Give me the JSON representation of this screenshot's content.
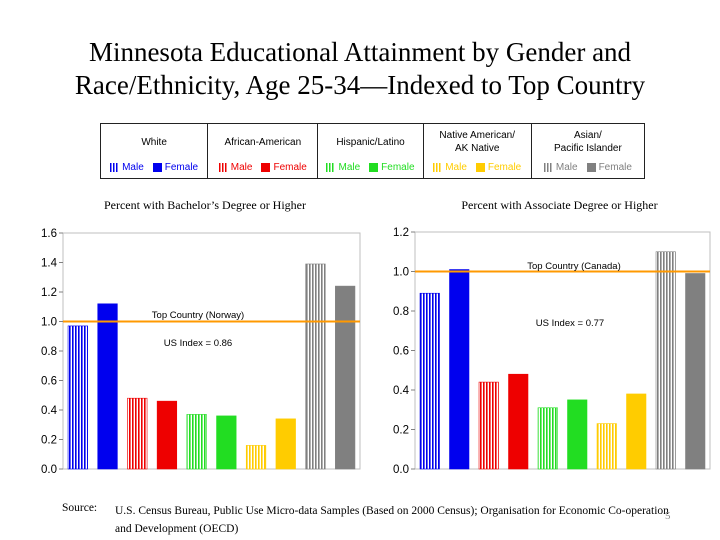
{
  "title": "Minnesota Educational Attainment by Gender and Race/Ethnicity, Age 25-34—Indexed to Top Country",
  "legend": {
    "groups": [
      {
        "name": "White",
        "color": "#0000ee",
        "male_label": "Male",
        "female_label": "Female"
      },
      {
        "name": "African-American",
        "color": "#ee0000",
        "male_label": "Male",
        "female_label": "Female"
      },
      {
        "name": "Hispanic/Latino",
        "color": "#22dd22",
        "male_label": "Male",
        "female_label": "Female"
      },
      {
        "name": "Native American/\nAK Native",
        "color": "#ffcc00",
        "male_label": "Male",
        "female_label": "Female"
      },
      {
        "name": "Asian/\nPacific Islander",
        "color": "#808080",
        "male_label": "Male",
        "female_label": "Female"
      }
    ]
  },
  "chart_data": [
    {
      "type": "bar",
      "title": "Percent with Bachelor’s Degree or Higher",
      "categories": [
        "White Male",
        "White Female",
        "African-American Male",
        "African-American Female",
        "Hispanic/Latino Male",
        "Hispanic/Latino Female",
        "Native American/AK Native Male",
        "Native American/AK Native Female",
        "Asian/Pacific Islander Male",
        "Asian/Pacific Islander Female"
      ],
      "values": [
        0.97,
        1.12,
        0.48,
        0.46,
        0.37,
        0.36,
        0.16,
        0.34,
        1.39,
        1.24
      ],
      "patterns": [
        "striped",
        "solid",
        "striped",
        "solid",
        "striped",
        "solid",
        "striped",
        "solid",
        "striped",
        "solid"
      ],
      "colors": [
        "#0000ee",
        "#0000ee",
        "#ee0000",
        "#ee0000",
        "#22dd22",
        "#22dd22",
        "#ffcc00",
        "#ffcc00",
        "#808080",
        "#808080"
      ],
      "ylim": [
        0,
        1.6
      ],
      "yticks": [
        "0.0",
        "0.2",
        "0.4",
        "0.6",
        "0.8",
        "1.0",
        "1.2",
        "1.4",
        "1.6"
      ],
      "reference_value": 1.0,
      "reference_color": "#ff9900",
      "reference_label": "Top Country (Norway)",
      "index_label": "US Index = 0.86",
      "grid": false
    },
    {
      "type": "bar",
      "title": "Percent with Associate Degree or Higher",
      "categories": [
        "White Male",
        "White Female",
        "African-American Male",
        "African-American Female",
        "Hispanic/Latino Male",
        "Hispanic/Latino Female",
        "Native American/AK Native Male",
        "Native American/AK Native Female",
        "Asian/Pacific Islander Male",
        "Asian/Pacific Islander Female"
      ],
      "values": [
        0.89,
        1.01,
        0.44,
        0.48,
        0.31,
        0.35,
        0.23,
        0.38,
        1.1,
        0.99
      ],
      "patterns": [
        "striped",
        "solid",
        "striped",
        "solid",
        "striped",
        "solid",
        "striped",
        "solid",
        "striped",
        "solid"
      ],
      "colors": [
        "#0000ee",
        "#0000ee",
        "#ee0000",
        "#ee0000",
        "#22dd22",
        "#22dd22",
        "#ffcc00",
        "#ffcc00",
        "#808080",
        "#808080"
      ],
      "ylim": [
        0,
        1.2
      ],
      "yticks": [
        "0.0",
        "0.2",
        "0.4",
        "0.6",
        "0.8",
        "1.0",
        "1.2"
      ],
      "reference_value": 1.0,
      "reference_color": "#ff9900",
      "reference_label": "Top Country (Canada)",
      "index_label": "US Index = 0.77",
      "grid": false
    }
  ],
  "source": {
    "label": "Source:",
    "text": "U.S. Census Bureau, Public Use Micro-data Samples (Based on 2000 Census); Organisation for Economic Co-operation and Development (OECD)"
  },
  "page_number": "5"
}
